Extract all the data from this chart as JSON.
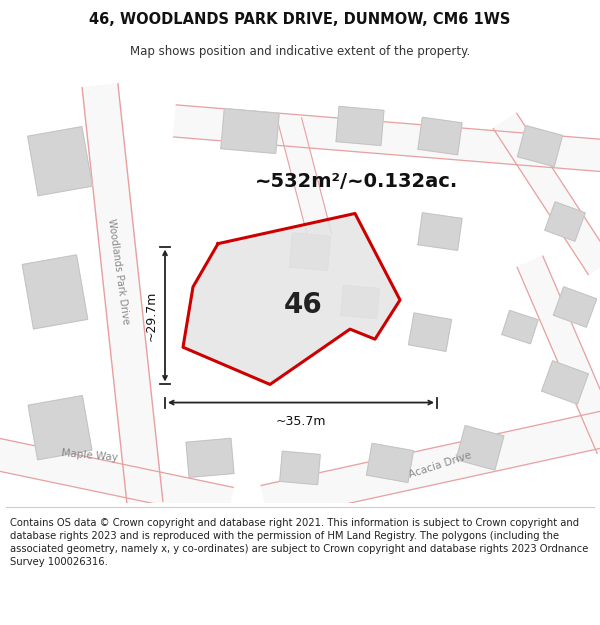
{
  "title": "46, WOODLANDS PARK DRIVE, DUNMOW, CM6 1WS",
  "subtitle": "Map shows position and indicative extent of the property.",
  "area_label": "~532m²/~0.132ac.",
  "plot_number": "46",
  "width_label": "~35.7m",
  "height_label": "~29.7m",
  "footer": "Contains OS data © Crown copyright and database right 2021. This information is subject to Crown copyright and database rights 2023 and is reproduced with the permission of HM Land Registry. The polygons (including the associated geometry, namely x, y co-ordinates) are subject to Crown copyright and database rights 2023 Ordnance Survey 100026316.",
  "map_bg": "#eeeeee",
  "road_edge": "#e8a0a0",
  "road_fill": "#f8f8f8",
  "building_fill": "#d4d4d4",
  "building_edge": "#c0c0c0",
  "plot_edge": "#cc0000",
  "plot_fill": "#e4e4e4",
  "arrow_color": "#222222",
  "label_color": "#555555",
  "title_fontsize": 10.5,
  "subtitle_fontsize": 8.5,
  "footer_fontsize": 7.2,
  "area_fontsize": 14,
  "plot_num_fontsize": 20,
  "dim_fontsize": 9,
  "road_label_fontsize": 7
}
